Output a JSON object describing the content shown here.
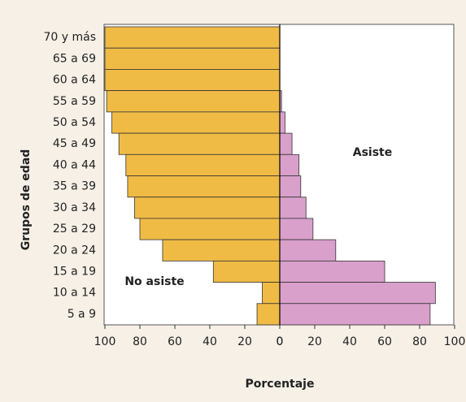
{
  "chart_data": {
    "type": "pyramid",
    "y_label": "Grupos de edad",
    "x_label": "Porcentaje",
    "categories": [
      "70 y más",
      "65 a 69",
      "60 a 64",
      "55 a 59",
      "50 a 54",
      "45 a 49",
      "40 a 44",
      "35 a 39",
      "30 a 34",
      "25 a 29",
      "20 a 24",
      "15 a 19",
      "10 a 14",
      "5 a 9"
    ],
    "series": [
      {
        "name": "No asiste",
        "side": "left",
        "color": "#f0bb45",
        "values": [
          100,
          100,
          100,
          99,
          96,
          92,
          88,
          87,
          83,
          80,
          67,
          38,
          10,
          13
        ]
      },
      {
        "name": "Asiste",
        "side": "right",
        "color": "#d9a0cc",
        "values": [
          0,
          0,
          0,
          1,
          3,
          7,
          11,
          12,
          15,
          19,
          32,
          60,
          89,
          86
        ]
      }
    ],
    "xlim": [
      0,
      100
    ],
    "left_xticks": [
      100,
      80,
      60,
      40,
      20,
      0
    ],
    "right_xticks": [
      0,
      20,
      40,
      60,
      80,
      100
    ]
  }
}
